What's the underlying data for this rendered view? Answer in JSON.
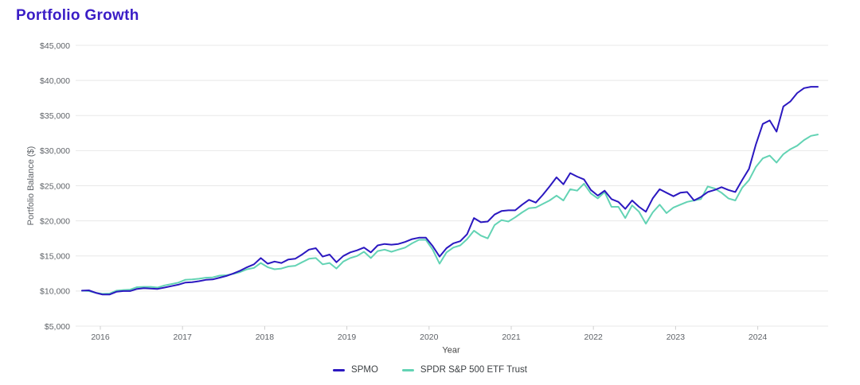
{
  "title": "Portfolio Growth",
  "title_color": "#3a1dc6",
  "chart_data": {
    "type": "line",
    "title": "Portfolio Growth",
    "xlabel": "Year",
    "ylabel": "Portfolio Balance ($)",
    "ylim": [
      5000,
      45000
    ],
    "grid": "horizontal",
    "legend_position": "bottom-center",
    "y_ticks": [
      5000,
      10000,
      15000,
      20000,
      25000,
      30000,
      35000,
      40000,
      45000
    ],
    "y_tick_labels": [
      "$5,000",
      "$10,000",
      "$15,000",
      "$20,000",
      "$25,000",
      "$30,000",
      "$35,000",
      "$40,000",
      "$45,000"
    ],
    "x_tick_labels": [
      "2016",
      "2017",
      "2018",
      "2019",
      "2020",
      "2021",
      "2022",
      "2023",
      "2024"
    ],
    "x_start": "2015-11",
    "x_interval": "monthly",
    "series": [
      {
        "name": "SPMO",
        "color": "#2b18c0",
        "values": [
          10050,
          10100,
          9750,
          9500,
          9500,
          9900,
          10000,
          10000,
          10300,
          10400,
          10350,
          10300,
          10500,
          10700,
          10900,
          11200,
          11250,
          11400,
          11600,
          11650,
          11900,
          12150,
          12500,
          12900,
          13400,
          13800,
          14700,
          13900,
          14200,
          14000,
          14500,
          14600,
          15200,
          15900,
          16100,
          14900,
          15200,
          14100,
          15000,
          15500,
          15800,
          16200,
          15500,
          16500,
          16700,
          16600,
          16700,
          17000,
          17400,
          17600,
          17600,
          16400,
          14900,
          16100,
          16800,
          17100,
          18100,
          20400,
          19800,
          19900,
          20900,
          21400,
          21500,
          21500,
          22300,
          23000,
          22600,
          23700,
          24900,
          26200,
          25200,
          26800,
          26300,
          25900,
          24400,
          23600,
          24300,
          23100,
          22700,
          21700,
          22900,
          22000,
          21300,
          23200,
          24500,
          24000,
          23500,
          24000,
          24100,
          22900,
          23400,
          24100,
          24400,
          24800,
          24400,
          24100,
          25800,
          27400,
          30900,
          33800,
          34300,
          32700,
          36300,
          37000,
          38200,
          38900,
          39100,
          39100
        ]
      },
      {
        "name": "SPDR S&P 500 ETF Trust",
        "color": "#63d3b4",
        "values": [
          10050,
          10000,
          9750,
          9600,
          9650,
          10050,
          10150,
          10200,
          10550,
          10600,
          10600,
          10500,
          10800,
          11000,
          11200,
          11600,
          11650,
          11750,
          11900,
          11950,
          12200,
          12250,
          12450,
          12700,
          13100,
          13300,
          14000,
          13400,
          13100,
          13200,
          13500,
          13600,
          14100,
          14600,
          14700,
          13800,
          14000,
          13200,
          14200,
          14700,
          15000,
          15600,
          14700,
          15700,
          15900,
          15600,
          15900,
          16200,
          16800,
          17300,
          17300,
          15900,
          13900,
          15500,
          16200,
          16500,
          17400,
          18600,
          17900,
          17500,
          19400,
          20100,
          19900,
          20500,
          21200,
          21800,
          21900,
          22400,
          22900,
          23600,
          22900,
          24500,
          24300,
          25300,
          23900,
          23200,
          24100,
          22000,
          22000,
          20400,
          22200,
          21300,
          19600,
          21200,
          22300,
          21100,
          21900,
          22300,
          22700,
          22900,
          23100,
          24900,
          24600,
          24000,
          23200,
          22900,
          24700,
          25800,
          27700,
          28900,
          29300,
          28300,
          29500,
          30200,
          30700,
          31500,
          32100,
          32300
        ]
      }
    ]
  },
  "legend": {
    "items": [
      {
        "label": "SPMO",
        "color": "#2b18c0"
      },
      {
        "label": "SPDR S&P 500 ETF Trust",
        "color": "#63d3b4"
      }
    ]
  }
}
